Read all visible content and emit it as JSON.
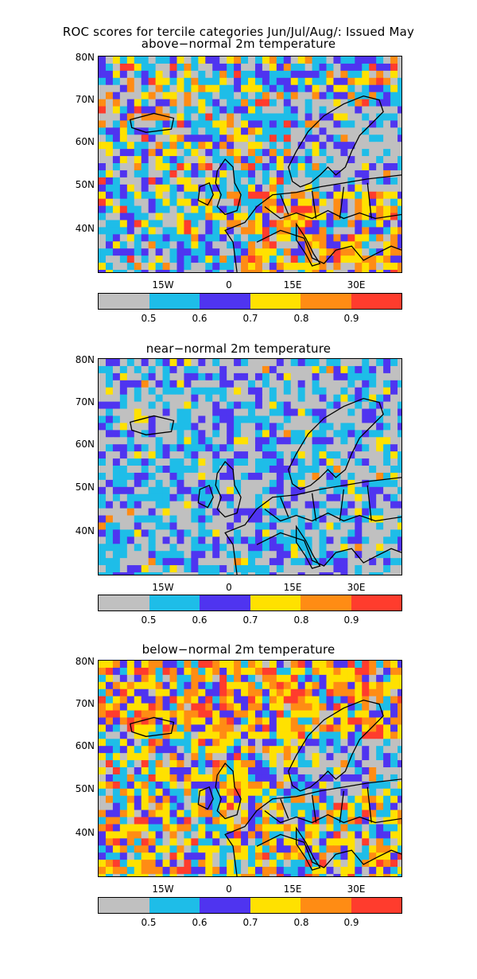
{
  "header": {
    "title_line1": "ROC scores for tercile categories Jun/Jul/Aug/: Issued May"
  },
  "panels": [
    {
      "title": "above−normal 2m temperature",
      "scheme": "above"
    },
    {
      "title": "near−normal 2m temperature",
      "scheme": "near"
    },
    {
      "title": "below−normal 2m temperature",
      "scheme": "below"
    }
  ],
  "lat_labels": [
    "80N",
    "70N",
    "60N",
    "50N",
    "40N"
  ],
  "lon_labels": [
    "15W",
    "0",
    "15E",
    "30E"
  ],
  "colorbar": {
    "colors": [
      "#c0c0c0",
      "#1ebde8",
      "#4f34f0",
      "#ffe100",
      "#ff8c14",
      "#ff3c2d"
    ],
    "labels": [
      "0.5",
      "0.6",
      "0.7",
      "0.8",
      "0.9"
    ]
  }
}
